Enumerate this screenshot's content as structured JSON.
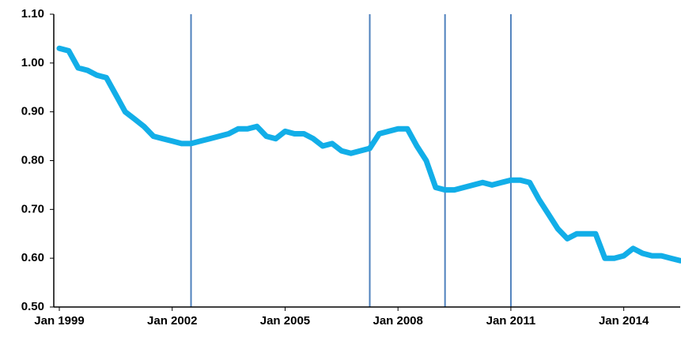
{
  "chart_data": {
    "type": "line",
    "categories": [
      "Jan 1999",
      null,
      null,
      null,
      null,
      null,
      null,
      null,
      null,
      null,
      null,
      null,
      "Jan 2002",
      null,
      null,
      null,
      null,
      null,
      null,
      null,
      null,
      null,
      null,
      null,
      "Jan 2005",
      null,
      null,
      null,
      null,
      null,
      null,
      null,
      null,
      null,
      null,
      null,
      "Jan 2008",
      null,
      null,
      null,
      null,
      null,
      null,
      null,
      null,
      null,
      null,
      null,
      "Jan 2011",
      null,
      null,
      null,
      null,
      null,
      null,
      null,
      null,
      null,
      null,
      null,
      "Jan 2014",
      null,
      null,
      null,
      null,
      null,
      null
    ],
    "series": [
      {
        "color": "#12aee8",
        "values": [
          1.03,
          1.025,
          0.99,
          0.985,
          0.975,
          0.97,
          0.935,
          0.9,
          0.885,
          0.87,
          0.85,
          0.845,
          0.84,
          0.835,
          0.835,
          0.84,
          0.845,
          0.85,
          0.855,
          0.865,
          0.865,
          0.87,
          0.85,
          0.845,
          0.86,
          0.855,
          0.855,
          0.845,
          0.83,
          0.835,
          0.82,
          0.815,
          0.82,
          0.825,
          0.855,
          0.86,
          0.865,
          0.865,
          0.83,
          0.8,
          0.745,
          0.74,
          0.74,
          0.745,
          0.75,
          0.755,
          0.75,
          0.755,
          0.76,
          0.76,
          0.755,
          0.72,
          0.69,
          0.66,
          0.64,
          0.65,
          0.65,
          0.65,
          0.6,
          0.6,
          0.605,
          0.62,
          0.61,
          0.605,
          0.605,
          0.6,
          0.595
        ]
      }
    ],
    "event_lines": [
      14,
      33,
      41,
      48
    ],
    "ylim": [
      0.5,
      1.1
    ],
    "yticks": [
      {
        "value": 0.5,
        "label": "0.50"
      },
      {
        "value": 0.6,
        "label": "0.60"
      },
      {
        "value": 0.7,
        "label": "0.70"
      },
      {
        "value": 0.8,
        "label": "0.80"
      },
      {
        "value": 0.9,
        "label": "0.90"
      },
      {
        "value": 1.0,
        "label": "1.00"
      },
      {
        "value": 1.1,
        "label": "1.10"
      }
    ]
  }
}
